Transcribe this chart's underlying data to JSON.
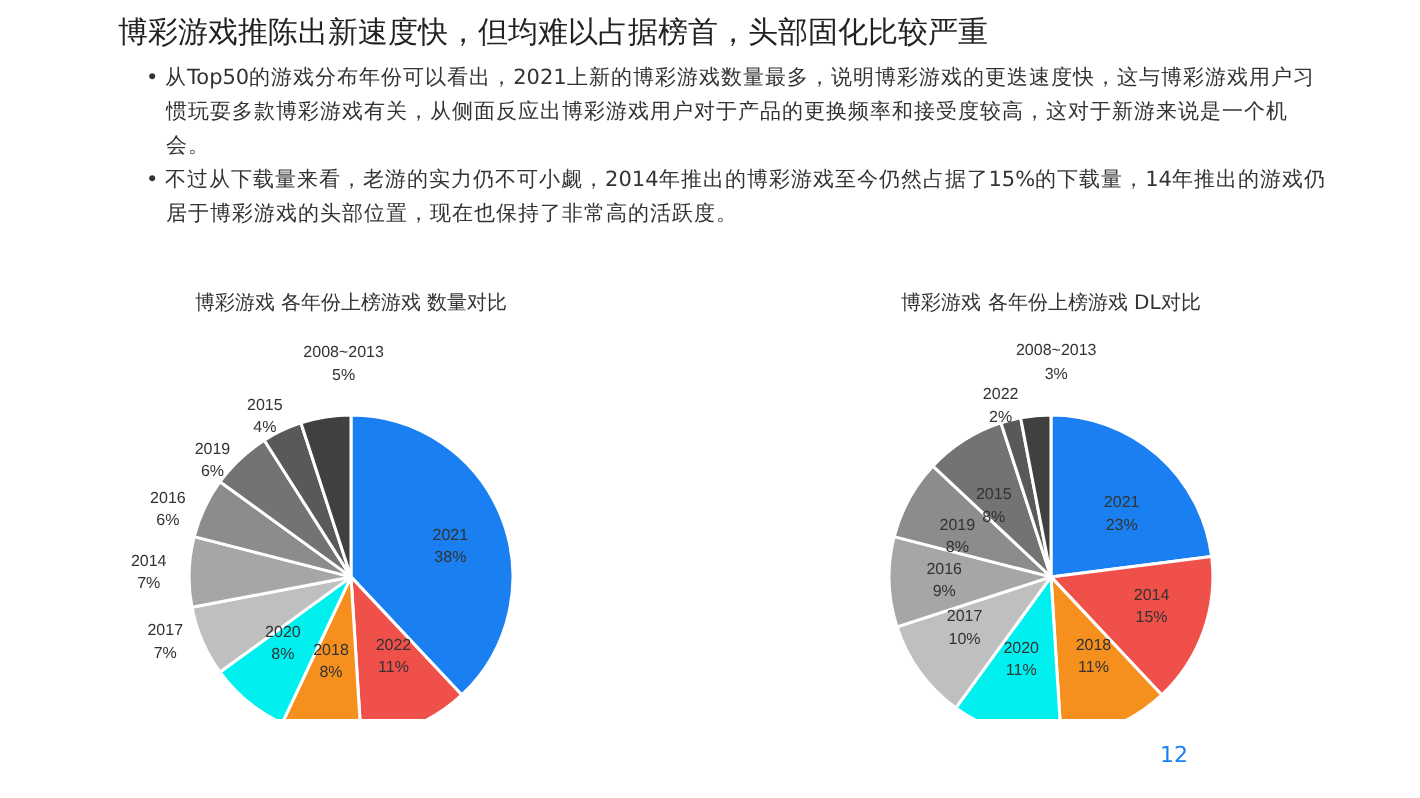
{
  "chart_data": [
    {
      "type": "pie",
      "title": "博彩游戏 各年份上榜游戏 数量对比",
      "categories": [
        "2021",
        "2022",
        "2018",
        "2020",
        "2017",
        "2014",
        "2016",
        "2019",
        "2015",
        "2008~2013"
      ],
      "values": [
        38,
        11,
        8,
        8,
        7,
        7,
        6,
        6,
        4,
        5
      ],
      "colors": [
        "#1a7ff0",
        "#f0504a",
        "#f5901e",
        "#00f0f0",
        "#bfbfbf",
        "#a6a6a6",
        "#8c8c8c",
        "#737373",
        "#595959",
        "#404040"
      ],
      "value_labels": [
        "38%",
        "11%",
        "8%",
        "8%",
        "7%",
        "7%",
        "6%",
        "6%",
        "4%",
        "5%"
      ],
      "annotations": [
        "博彩游戏推陈出新速度快，但均难以占据榜首，头部固化比较严重",
        "• 从Top50的游戏分布年份可以看出，2021上新的博彩游戏数量最多，说明博彩游戏的更迭速度快，这与博彩游戏用户习惯玩耍多款博彩游戏有关，从侧面反应出博彩游戏用户对于产品的更换频率和接受度较高，这对于新游来说是一个机会。",
        "• 不过从下载量来看，老游的实力仍不可小觑，2014年推出的博彩游戏至今仍然占据了15%的下载量，14年推出的游戏仍居于博彩游戏的头部位置，现在也保持了非常高的活跃度。",
        "12"
      ]
    },
    {
      "type": "pie",
      "title": "博彩游戏 各年份上榜游戏 DL对比",
      "categories": [
        "2021",
        "2014",
        "2018",
        "2020",
        "2017",
        "2016",
        "2019",
        "2015",
        "2022",
        "2008~2013"
      ],
      "values": [
        23,
        15,
        11,
        11,
        10,
        9,
        8,
        8,
        2,
        3
      ],
      "colors": [
        "#1a7ff0",
        "#f0504a",
        "#f5901e",
        "#00f0f0",
        "#bfbfbf",
        "#a6a6a6",
        "#8c8c8c",
        "#737373",
        "#595959",
        "#404040"
      ],
      "value_labels": [
        "23%",
        "15%",
        "11%",
        "11%",
        "10%",
        "9%",
        "8%",
        "8%",
        "2%",
        "3%"
      ]
    }
  ]
}
